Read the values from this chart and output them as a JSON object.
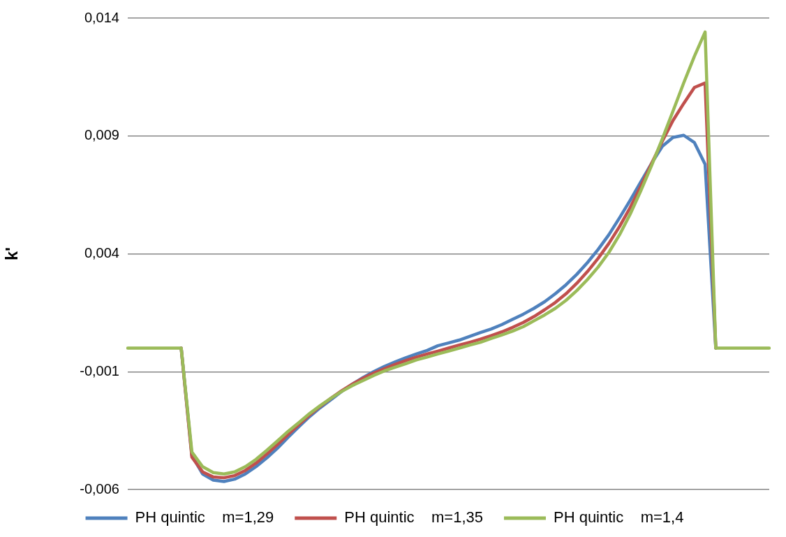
{
  "chart_data": {
    "type": "line",
    "ylabel": "k'",
    "categories": [
      null,
      null,
      null,
      null,
      null,
      null,
      null,
      null,
      null,
      null,
      null,
      null,
      null,
      null,
      null,
      null,
      null,
      null,
      null,
      null,
      null,
      null,
      null,
      null,
      null,
      null,
      null,
      null,
      null,
      null,
      null,
      null,
      null,
      null,
      null,
      null,
      null,
      null,
      null,
      null,
      null,
      null,
      null,
      null,
      null,
      null,
      null,
      null,
      null,
      null,
      null,
      null,
      null,
      null,
      null,
      null,
      null,
      null,
      null,
      null,
      null
    ],
    "series": [
      {
        "name": "PH quintic    m=1,29",
        "color": "#4f81bd",
        "values": [
          null,
          null,
          null,
          null,
          null,
          0,
          -0.00456,
          -0.00534,
          -0.0056,
          -0.00566,
          -0.00556,
          -0.00534,
          -0.00503,
          -0.00466,
          -0.00425,
          -0.00378,
          -0.00334,
          -0.00291,
          -0.00253,
          -0.00219,
          -0.00184,
          -0.00153,
          -0.00125,
          -0.001,
          -0.00078,
          -0.00059,
          -0.00041,
          -0.00025,
          -0.0001,
          0.0001,
          0.00022,
          0.00034,
          0.0005,
          0.00066,
          0.00081,
          0.001,
          0.00122,
          0.00144,
          0.00169,
          0.00197,
          0.00231,
          0.00269,
          0.00313,
          0.00363,
          0.00419,
          0.00481,
          0.00553,
          0.00628,
          0.00706,
          0.00784,
          0.00856,
          0.00894,
          0.00903,
          0.00872,
          0.0078,
          0,
          null,
          null,
          null,
          null,
          null
        ]
      },
      {
        "name": "PH quintic    m=1,35",
        "color": "#c0504d",
        "values": [
          null,
          null,
          null,
          null,
          null,
          0,
          -0.00463,
          -0.00525,
          -0.00547,
          -0.0055,
          -0.00541,
          -0.00519,
          -0.00488,
          -0.0045,
          -0.00409,
          -0.00366,
          -0.00325,
          -0.00284,
          -0.00247,
          -0.00213,
          -0.00181,
          -0.00153,
          -0.00128,
          -0.00106,
          -0.00088,
          -0.00069,
          -0.00053,
          -0.00038,
          -0.00025,
          -0.00013,
          0,
          0.00013,
          0.00025,
          0.00038,
          0.00053,
          0.00069,
          0.00088,
          0.00109,
          0.00134,
          0.00163,
          0.00194,
          0.00231,
          0.00275,
          0.00325,
          0.00381,
          0.00444,
          0.00516,
          0.00597,
          0.00688,
          0.00784,
          0.00878,
          0.00966,
          0.01038,
          0.01106,
          0.01125,
          0,
          null,
          null,
          null,
          null,
          null
        ]
      },
      {
        "name": "PH quintic    m=1,4",
        "color": "#9bbb59",
        "values": [
          0,
          0,
          0,
          0,
          0,
          0,
          -0.00441,
          -0.00503,
          -0.00528,
          -0.00534,
          -0.00525,
          -0.00503,
          -0.00472,
          -0.00434,
          -0.00394,
          -0.00353,
          -0.00316,
          -0.00278,
          -0.00244,
          -0.00213,
          -0.00184,
          -0.00159,
          -0.00138,
          -0.00116,
          -0.00097,
          -0.00081,
          -0.00066,
          -0.0005,
          -0.00038,
          -0.00025,
          -0.00013,
          0,
          0.00013,
          0.00025,
          0.00041,
          0.00056,
          0.00072,
          0.00091,
          0.00116,
          0.00141,
          0.00169,
          0.00203,
          0.00244,
          0.00291,
          0.00344,
          0.00406,
          0.00481,
          0.00569,
          0.00669,
          0.00775,
          0.00888,
          0.01006,
          0.01125,
          0.01238,
          0.01341,
          0,
          0,
          0,
          0,
          0,
          0
        ]
      }
    ],
    "ylim": [
      -0.006,
      0.014
    ],
    "yticks": [
      {
        "value": -0.006,
        "label": "-0,006"
      },
      {
        "value": -0.001,
        "label": "-0,001"
      },
      {
        "value": 0.004,
        "label": "0,004"
      },
      {
        "value": 0.009,
        "label": "0,009"
      },
      {
        "value": 0.014,
        "label": "0,014"
      }
    ],
    "grid": "y",
    "legend": "bottom",
    "marker": "none",
    "line_style": "solid",
    "tick_labels": "y"
  }
}
